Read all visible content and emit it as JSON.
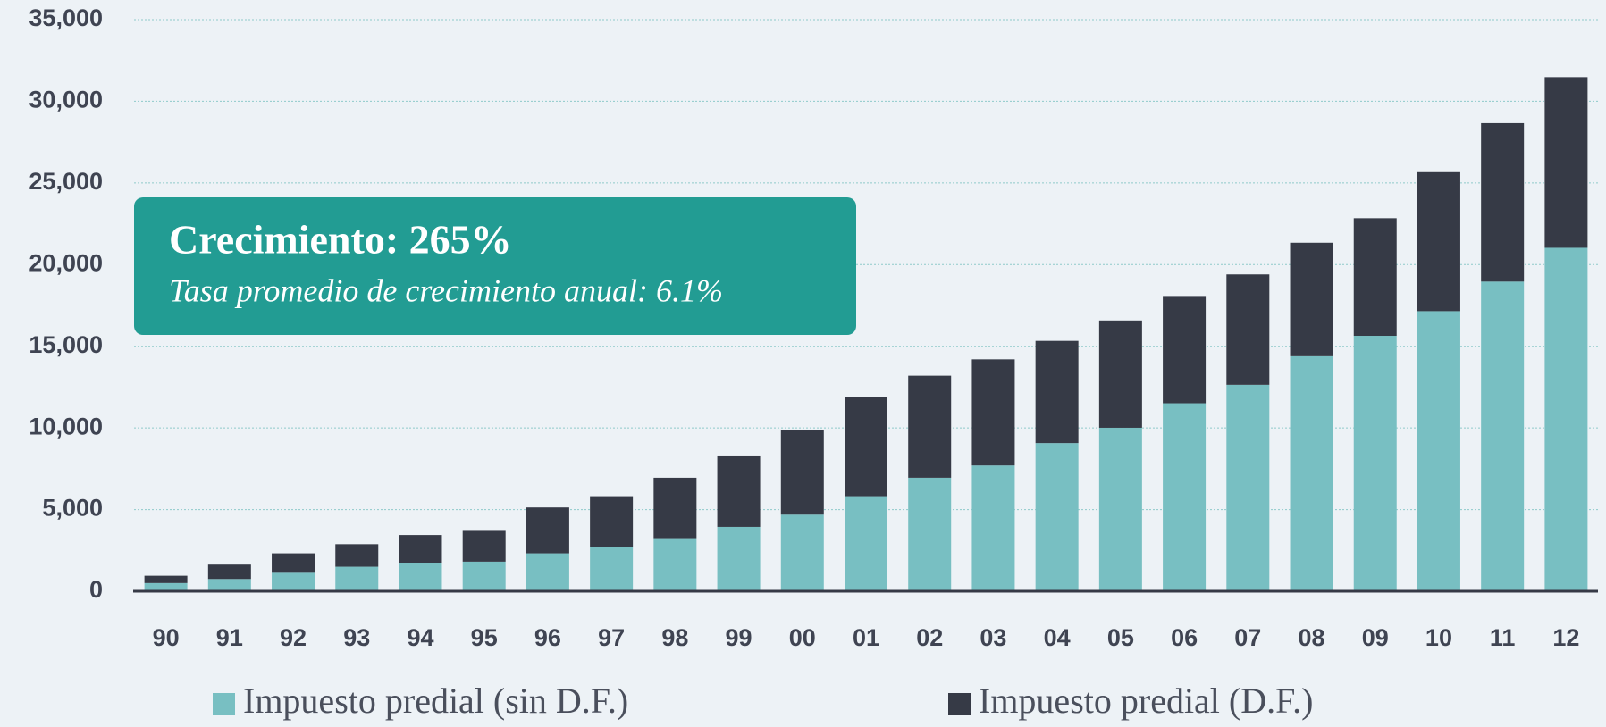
{
  "chart_data": {
    "type": "bar",
    "stacked": true,
    "categories": [
      "90",
      "91",
      "92",
      "93",
      "94",
      "95",
      "96",
      "97",
      "98",
      "99",
      "00",
      "01",
      "02",
      "03",
      "04",
      "05",
      "06",
      "07",
      "08",
      "09",
      "10",
      "11",
      "12"
    ],
    "series": [
      {
        "name": "Impuesto predial (sin D.F.)",
        "color": "#78bfc2",
        "values": [
          500,
          750,
          1130,
          1500,
          1750,
          1810,
          2320,
          2690,
          3250,
          3940,
          4690,
          5820,
          6950,
          7700,
          9070,
          10010,
          11510,
          12640,
          14390,
          15640,
          17150,
          18960,
          21030
        ]
      },
      {
        "name": "Impuesto predial (D.F.)",
        "color": "#363a46",
        "values": [
          450,
          880,
          1190,
          1380,
          1690,
          1940,
          2810,
          3130,
          3700,
          4320,
          5200,
          6070,
          6250,
          6500,
          6260,
          6570,
          6570,
          6760,
          6950,
          7200,
          8510,
          9700,
          10450
        ]
      }
    ],
    "ylim": [
      0,
      35000
    ],
    "yticks": [
      0,
      {
        "value": 5000,
        "label": "5,000"
      },
      {
        "value": 10000,
        "label": "10,000"
      },
      {
        "value": 15000,
        "label": "15,000"
      },
      {
        "value": 20000,
        "label": "20,000"
      },
      {
        "value": 25000,
        "label": "25,000"
      },
      {
        "value": 30000,
        "label": "30,000"
      },
      {
        "value": 35000,
        "label": "35,000"
      }
    ],
    "grid": true,
    "legend": "bottom",
    "annotations": [
      "Crecimiento: 265%",
      "Tasa promedio de crecimiento anual: 6.1%"
    ]
  }
}
